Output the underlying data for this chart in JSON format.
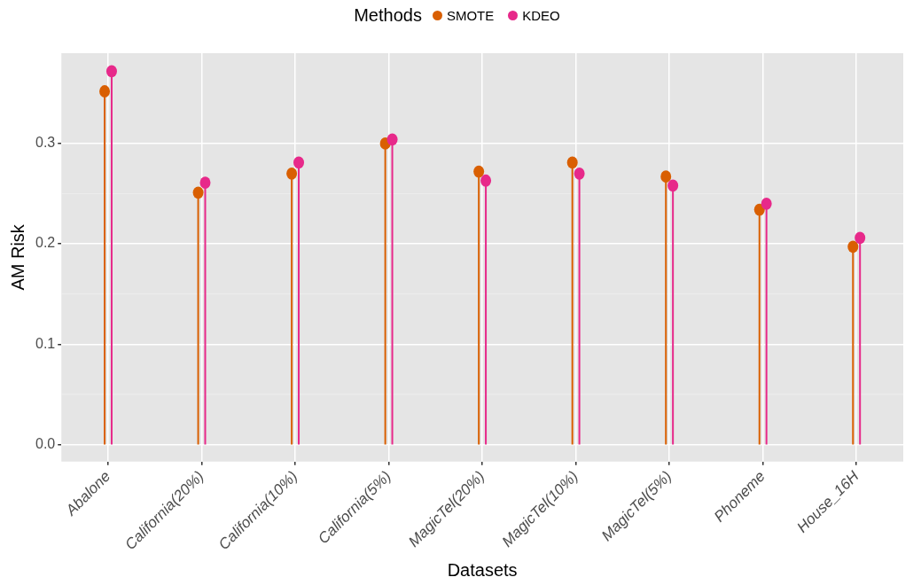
{
  "chart_data": {
    "type": "lollipop",
    "xlabel": "Datasets",
    "ylabel": "AM Risk",
    "legend_title": "Methods",
    "legend": "top",
    "grid": true,
    "marker": "circle",
    "categories": [
      "Abalone",
      "California(20%)",
      "California(10%)",
      "California(5%)",
      "MagicTel(20%)",
      "MagicTel(10%)",
      "MagicTel(5%)",
      "Phoneme",
      "House_16H"
    ],
    "ylim": [
      -0.017,
      0.39
    ],
    "yticks": [
      {
        "value": 0,
        "label": "0.0"
      },
      0.1,
      0.2,
      0.3
    ],
    "series": [
      {
        "name": "SMOTE",
        "color": "#d95f02",
        "values": [
          0.352,
          0.251,
          0.27,
          0.3,
          0.272,
          0.281,
          0.267,
          0.234,
          0.197
        ]
      },
      {
        "name": "KDEO",
        "color": "#e7298a",
        "values": [
          0.372,
          0.261,
          0.281,
          0.304,
          0.263,
          0.27,
          0.258,
          0.24,
          0.206
        ]
      }
    ]
  }
}
